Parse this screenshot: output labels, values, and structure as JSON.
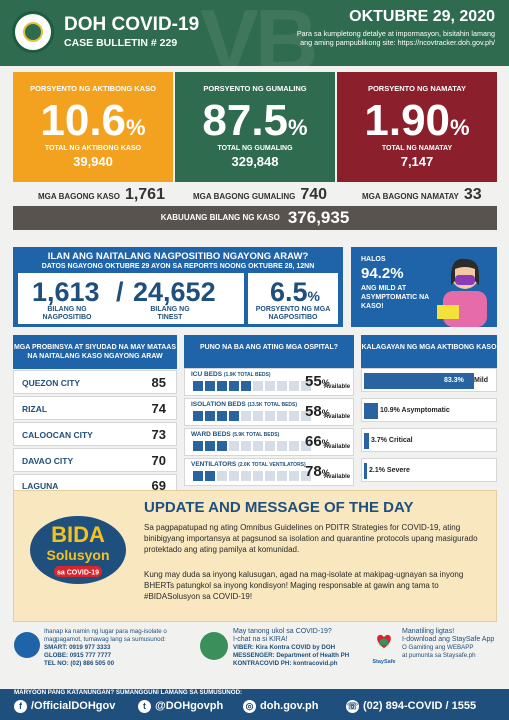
{
  "header": {
    "title": "DOH COVID-19",
    "bulletin": "CASE BULLETIN # 229",
    "date": "OKTUBRE 29, 2020",
    "note": "Para sa kumpletong detalye at impormasyon, bisitahin lamang ang aming pampublikong site: https://ncovtracker.doh.gov.ph/",
    "watermark": "VB"
  },
  "stats": {
    "active": {
      "label": "PORSYENTO NG AKTIBONG KASO",
      "pct": "10.6",
      "sub": "TOTAL NG AKTIBONG KASO",
      "count": "39,940",
      "color": "#f3a21f"
    },
    "recovered": {
      "label": "PORSYENTO NG GUMALING",
      "pct": "87.5",
      "sub": "TOTAL NG GUMALING",
      "count": "329,848",
      "color": "#2f6b4f"
    },
    "deaths": {
      "label": "PORSYENTO NG NAMATAY",
      "pct": "1.90",
      "sub": "TOTAL NG NAMATAY",
      "count": "7,147",
      "color": "#8b1f2b"
    }
  },
  "percent_sign": "%",
  "new": {
    "cases_label": "MGA BAGONG KASO",
    "cases": "1,761",
    "rec_label": "MGA BAGONG GUMALING",
    "rec": "740",
    "deaths_label": "MGA BAGONG NAMATAY",
    "deaths": "33"
  },
  "total": {
    "label": "KABUUANG BILANG NG KASO",
    "value": "376,935"
  },
  "tests": {
    "q": "ILAN ANG NAITALANG NAGPOSITIBO NGAYONG ARAW?",
    "src": "DATOS NGAYONG OKTUBRE 29 AYON SA REPORTS NOONG OKTUBRE 28, 12NN",
    "positive": "1,613",
    "slash": "/",
    "tested": "24,652",
    "pos_label": "BILANG NG NAGPOSITIBO",
    "tested_label": "BILANG NG TINEST",
    "rate": "6.5",
    "rate_label": "PORSYENTO NG MGA NAGPOSITIBO"
  },
  "asymp": {
    "l1": "HALOS",
    "pct": "94.2%",
    "l2": "ANG MILD AT ASYMPTOMATIC NA KASO!"
  },
  "provinces": {
    "title": "MGA PROBINSYA AT SIYUDAD NA MAY MATAAS NA NAITALANG KASO NGAYONG ARAW",
    "items": [
      {
        "name": "QUEZON CITY",
        "value": "85"
      },
      {
        "name": "RIZAL",
        "value": "74"
      },
      {
        "name": "CALOOCAN CITY",
        "value": "73"
      },
      {
        "name": "DAVAO CITY",
        "value": "70"
      },
      {
        "name": "LAGUNA",
        "value": "69"
      }
    ]
  },
  "hospital": {
    "title": "PUNO NA BA ANG ATING MGA OSPITAL?",
    "available": "Available",
    "items": [
      {
        "name": "ICU BEDS",
        "cap": "(1.9K TOTAL BEDS)",
        "pct": "55",
        "fill": 0.45
      },
      {
        "name": "ISOLATION BEDS",
        "cap": "(13.5K TOTAL BEDS)",
        "pct": "58",
        "fill": 0.42
      },
      {
        "name": "WARD BEDS",
        "cap": "(5.9K TOTAL BEDS)",
        "pct": "66",
        "fill": 0.34
      },
      {
        "name": "VENTILATORS",
        "cap": "(2.0K TOTAL VENTILATORS)",
        "pct": "78",
        "fill": 0.22
      }
    ]
  },
  "status": {
    "title": "KALAGAYAN NG MGA AKTIBONG KASO",
    "items": [
      {
        "label": "83.3%",
        "name": "Mild",
        "value": 83.3
      },
      {
        "label": "10.9% Asymptomatic",
        "value": 10.9
      },
      {
        "label": "3.7% Critical",
        "value": 3.7
      },
      {
        "label": "2.1% Severe",
        "value": 2.1
      }
    ]
  },
  "update": {
    "title": "UPDATE AND MESSAGE OF THE DAY",
    "p1": "Sa pagpapatupad ng ating Omnibus Guidelines on PDITR Strategies for COVID-19, ating binibigyang importansya at pagsunod sa isolation and quarantine protocols upang masigurado protektado ang ating pamilya at komunidad.",
    "p2": "Kung may duda sa inyong kalusugan, agad na mag-isolate at makipag-ugnayan sa inyong BHERTs patungkol sa inyong kondisyon! Maging responsable at gawin ang tama to #BIDASolusyon sa COVID-19!",
    "logo1": "BIDA",
    "logo2": "Solusyon",
    "logo3": "sa COVID-19"
  },
  "contacts": {
    "hotline": {
      "l1": "Ihanap ka namin ng lugar para mag-isolate o",
      "l2": "magpagamot, tumawag lang sa sumusunod:",
      "smart": "SMART: 0919 977 3333",
      "globe": "GLOBE: 0915 777 7777",
      "tel": "TEL NO: (02) 886 505 00"
    },
    "kira": {
      "l1": "May tanong ukol sa COVID-19?",
      "l2": "I-chat na si KIRA!",
      "viber": "VIBER: Kira Kontra COVID by DOH",
      "messenger": "MESSENGER: Department of Health PH",
      "kontra": "KONTRACOVID PH: kontracovid.ph"
    },
    "staysafe": {
      "l1": "Manatiling ligtas!",
      "l2": "I-download ang StaySafe App",
      "l3": "O Gamiting ang WEBAPP",
      "l4": "at pumunta sa Staysafe.ph",
      "logo": "StaySafe"
    }
  },
  "footer": {
    "label": "MARYOON PANG KATANUNGAN? SUMANGGUNI LAMANG SA SUMUSUNOD:",
    "facebook": "/OfficialDOHgov",
    "twitter": "@DOHgovph",
    "web": "doh.gov.ph",
    "phone": "(02) 894-COVID / 1555"
  }
}
